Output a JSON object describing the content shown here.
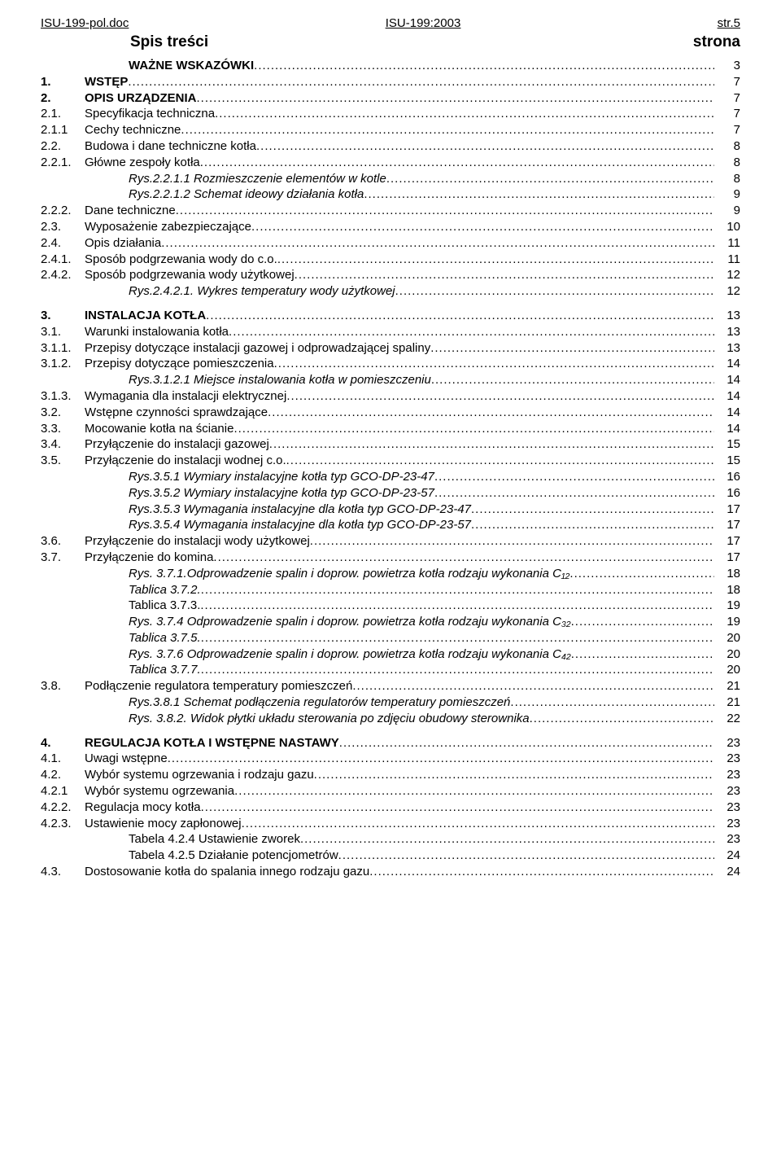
{
  "header": {
    "left": "ISU-199-pol.doc",
    "center": "ISU-199:2003",
    "right": "str.5"
  },
  "title": {
    "left": "Spis treści",
    "right": "strona"
  },
  "toc": [
    {
      "num": "",
      "text": "WAŻNE WSKAZÓWKI",
      "page": "3",
      "bold": true,
      "indent": true
    },
    {
      "num": "1.",
      "text": "WSTĘP",
      "page": "7",
      "bold": true
    },
    {
      "num": "2.",
      "text": "OPIS URZĄDZENIA",
      "page": "7",
      "bold": true
    },
    {
      "num": "2.1.",
      "text": "Specyfikacja techniczna",
      "page": "7"
    },
    {
      "num": "2.1.1",
      "text": "Cechy techniczne",
      "page": "7"
    },
    {
      "num": "2.2.",
      "text": "Budowa i dane techniczne kotła",
      "page": "8"
    },
    {
      "num": "2.2.1.",
      "text": "Główne zespoły kotła",
      "page": "8"
    },
    {
      "num": "",
      "text": "Rys.2.2.1.1 Rozmieszczenie elementów w kotle",
      "page": "8",
      "italic": true,
      "indent": true
    },
    {
      "num": "",
      "text": "Rys.2.2.1.2 Schemat ideowy działania kotła",
      "page": "9",
      "italic": true,
      "indent": true
    },
    {
      "num": "2.2.2.",
      "text": "Dane techniczne",
      "page": "9"
    },
    {
      "num": "2.3.",
      "text": "Wyposażenie zabezpieczające",
      "page": "10"
    },
    {
      "num": "2.4.",
      "text": "Opis działania",
      "page": "11"
    },
    {
      "num": "2.4.1.",
      "text": "Sposób podgrzewania wody do c.o.",
      "page": "11"
    },
    {
      "num": "2.4.2.",
      "text": "Sposób podgrzewania wody użytkowej",
      "page": "12"
    },
    {
      "num": "",
      "text": "Rys.2.4.2.1. Wykres temperatury wody użytkowej",
      "page": "12",
      "italic": true,
      "indent": true
    },
    {
      "gap": true
    },
    {
      "num": "3.",
      "text": "INSTALACJA KOTŁA",
      "page": "13",
      "bold": true
    },
    {
      "num": "3.1.",
      "text": "Warunki instalowania kotła",
      "page": "13"
    },
    {
      "num": "3.1.1.",
      "text": "Przepisy dotyczące instalacji gazowej i odprowadzającej spaliny",
      "page": "13"
    },
    {
      "num": "3.1.2.",
      "text": "Przepisy dotyczące pomieszczenia",
      "page": "14"
    },
    {
      "num": "",
      "text": "Rys.3.1.2.1 Miejsce instalowania kotła w pomieszczeniu",
      "page": "14",
      "italic": true,
      "indent": true
    },
    {
      "num": "3.1.3.",
      "text": "Wymagania dla instalacji elektrycznej",
      "page": "14"
    },
    {
      "num": "3.2.",
      "text": "Wstępne czynności sprawdzające",
      "page": "14"
    },
    {
      "num": "3.3.",
      "text": "Mocowanie kotła na ścianie",
      "page": "14"
    },
    {
      "num": "3.4.",
      "text": "Przyłączenie do instalacji gazowej",
      "page": "15"
    },
    {
      "num": "3.5.",
      "text": "Przyłączenie do instalacji wodnej c.o.",
      "page": "15"
    },
    {
      "num": "",
      "text": "Rys.3.5.1 Wymiary instalacyjne kotła typ GCO-DP-23-47",
      "page": "16",
      "italic": true,
      "indent": true
    },
    {
      "num": "",
      "text": "Rys.3.5.2 Wymiary instalacyjne kotła typ GCO-DP-23-57",
      "page": "16",
      "italic": true,
      "indent": true
    },
    {
      "num": "",
      "text": "Rys.3.5.3 Wymagania instalacyjne dla kotła typ GCO-DP-23-47",
      "page": "17",
      "italic": true,
      "indent": true
    },
    {
      "num": "",
      "text": "Rys.3.5.4 Wymagania instalacyjne dla kotła typ GCO-DP-23-57",
      "page": "17",
      "italic": true,
      "indent": true
    },
    {
      "num": "3.6.",
      "text": "Przyłączenie do instalacji wody użytkowej",
      "page": "17"
    },
    {
      "num": "3.7.",
      "text": "Przyłączenie do komina",
      "page": "17"
    },
    {
      "num": "",
      "text": "Rys. 3.7.1.Odprowadzenie spalin i doprow. powietrza kotła rodzaju wykonania C₁₂",
      "page": "18",
      "italic": true,
      "indent": true
    },
    {
      "num": "",
      "text": "Tablica 3.7.2.",
      "page": "18",
      "italic": true,
      "indent": true
    },
    {
      "num": "",
      "text": "Tablica 3.7.3.",
      "page": "19",
      "indent": true
    },
    {
      "num": "",
      "text": "Rys. 3.7.4 Odprowadzenie spalin i doprow. powietrza kotła rodzaju wykonania C₃₂",
      "page": "19",
      "italic": true,
      "indent": true
    },
    {
      "num": "",
      "text": "Tablica 3.7.5.",
      "page": "20",
      "italic": true,
      "indent": true
    },
    {
      "num": "",
      "text": "Rys. 3.7.6 Odprowadzenie spalin i doprow. powietrza kotła rodzaju wykonania C₄₂",
      "page": "20",
      "italic": true,
      "indent": true
    },
    {
      "num": "",
      "text": "Tablica 3.7.7.",
      "page": "20",
      "italic": true,
      "indent": true
    },
    {
      "num": "3.8.",
      "text": "Podłączenie regulatora temperatury pomieszczeń",
      "page": "21"
    },
    {
      "num": "",
      "text": "Rys.3.8.1 Schemat podłączenia regulatorów temperatury pomieszczeń",
      "page": "21",
      "italic": true,
      "indent": true
    },
    {
      "num": "",
      "text": "Rys. 3.8.2. Widok płytki układu sterowania po zdjęciu obudowy sterownika",
      "page": "22",
      "italic": true,
      "indent": true
    },
    {
      "gap": true
    },
    {
      "num": "4.",
      "text": "REGULACJA KOTŁA I WSTĘPNE NASTAWY",
      "page": "23",
      "bold": true
    },
    {
      "num": "4.1.",
      "text": "Uwagi wstępne",
      "page": "23"
    },
    {
      "num": "4.2.",
      "text": "Wybór systemu ogrzewania i rodzaju gazu",
      "page": "23"
    },
    {
      "num": "4.2.1",
      "text": "Wybór systemu ogrzewania",
      "page": "23"
    },
    {
      "num": "4.2.2.",
      "text": "Regulacja mocy kotła",
      "page": "23"
    },
    {
      "num": "4.2.3.",
      "text": "Ustawienie mocy zapłonowej",
      "page": "23"
    },
    {
      "num": "",
      "text": "Tabela 4.2.4 Ustawienie zworek",
      "page": "23",
      "indent": true
    },
    {
      "num": "",
      "text": "Tabela 4.2.5 Działanie potencjometrów",
      "page": "24",
      "indent": true
    },
    {
      "num": "4.3.",
      "text": "Dostosowanie kotła do spalania innego rodzaju gazu",
      "page": "24"
    }
  ]
}
